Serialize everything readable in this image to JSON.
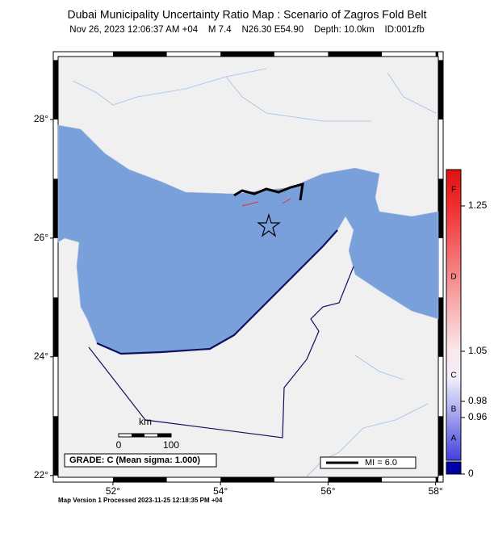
{
  "header": {
    "title": "Dubai Municipality Uncertainty Ratio Map : Scenario of Zagros Fold Belt",
    "subtitle": "Nov 26, 2023 12:06:37 AM +04    M 7.4    N26.30 E54.90    Depth: 10.0km    ID:001zfb"
  },
  "map": {
    "lon_range": [
      50.98,
      58.05
    ],
    "lat_range": [
      21.97,
      29.06
    ],
    "lon_ticks": [
      {
        "value": 52,
        "label": "52°"
      },
      {
        "value": 54,
        "label": "54°"
      },
      {
        "value": 56,
        "label": "56°"
      },
      {
        "value": 58,
        "label": "58°"
      }
    ],
    "lat_ticks": [
      {
        "value": 28,
        "label": "28°"
      },
      {
        "value": 26,
        "label": "26°"
      },
      {
        "value": 24,
        "label": "24°"
      },
      {
        "value": 22,
        "label": "22°"
      }
    ]
  },
  "scale_bar": {
    "unit": "km",
    "start": "0",
    "end": "100"
  },
  "grade_box": "GRADE: C (Mean sigma: 1.000)",
  "legend": "MI = 6.0",
  "colorbar": {
    "ticks": [
      "1.25",
      "1.05",
      "0.98",
      "0.96",
      "0"
    ],
    "grades": [
      "F",
      "D",
      "C",
      "B",
      "A"
    ]
  },
  "footer": "Map Version 1 Processed 2023-11-25 12:18:35 PM +04"
}
